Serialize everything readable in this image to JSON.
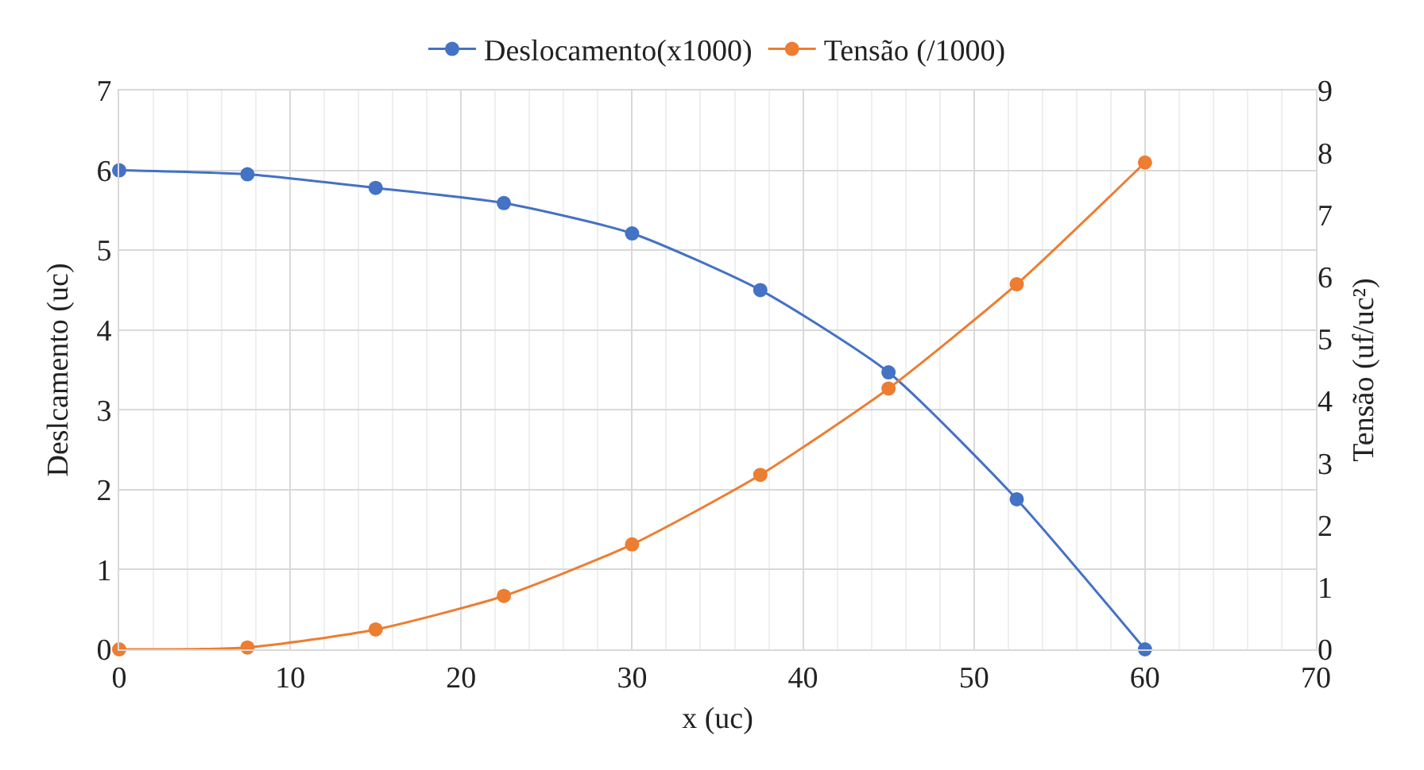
{
  "chart_data": {
    "type": "line",
    "xlabel": "x (uc)",
    "ylabel": "Deslcamento (uc)",
    "y2label": "Tensão (uf/uc²)",
    "x": [
      0,
      7.5,
      15,
      22.5,
      30,
      37.5,
      45,
      52.5,
      60
    ],
    "series": [
      {
        "name": "Deslocamento(x1000)",
        "color": "#4472c4",
        "values": [
          6,
          5.95,
          5.78,
          5.59,
          5.21,
          4.5,
          3.47,
          1.88,
          0
        ]
      },
      {
        "name": "Tensão (/1000)",
        "color": "#ed7d31",
        "axis": "y2",
        "values": [
          0,
          0.03,
          0.32,
          0.86,
          1.69,
          2.81,
          4.2,
          5.88,
          7.84
        ]
      }
    ],
    "xlim": [
      0,
      70
    ],
    "xticks": [
      0,
      {
        "value": 2,
        "label": null
      },
      {
        "value": 4,
        "label": null
      },
      {
        "value": 6,
        "label": null
      },
      {
        "value": 8,
        "label": null
      },
      10,
      {
        "value": 12,
        "label": null
      },
      {
        "value": 14,
        "label": null
      },
      {
        "value": 16,
        "label": null
      },
      {
        "value": 18,
        "label": null
      },
      20,
      {
        "value": 22,
        "label": null
      },
      {
        "value": 24,
        "label": null
      },
      {
        "value": 26,
        "label": null
      },
      {
        "value": 28,
        "label": null
      },
      30,
      {
        "value": 32,
        "label": null
      },
      {
        "value": 34,
        "label": null
      },
      {
        "value": 36,
        "label": null
      },
      {
        "value": 38,
        "label": null
      },
      40,
      {
        "value": 42,
        "label": null
      },
      {
        "value": 44,
        "label": null
      },
      {
        "value": 46,
        "label": null
      },
      {
        "value": 48,
        "label": null
      },
      50,
      {
        "value": 52,
        "label": null
      },
      {
        "value": 54,
        "label": null
      },
      {
        "value": 56,
        "label": null
      },
      {
        "value": 58,
        "label": null
      },
      60,
      {
        "value": 62,
        "label": null
      },
      {
        "value": 64,
        "label": null
      },
      {
        "value": 66,
        "label": null
      },
      {
        "value": 68,
        "label": null
      },
      70
    ],
    "ylim": [
      0,
      7
    ],
    "yticks": [
      0,
      1,
      2,
      3,
      4,
      5,
      6,
      7
    ],
    "y2lim": [
      0,
      9
    ],
    "y2ticks": [
      0,
      1,
      2,
      3,
      4,
      5,
      6,
      7,
      8,
      9
    ],
    "grid": true,
    "legend": "top",
    "marker": "circle",
    "line_style": "solid"
  }
}
